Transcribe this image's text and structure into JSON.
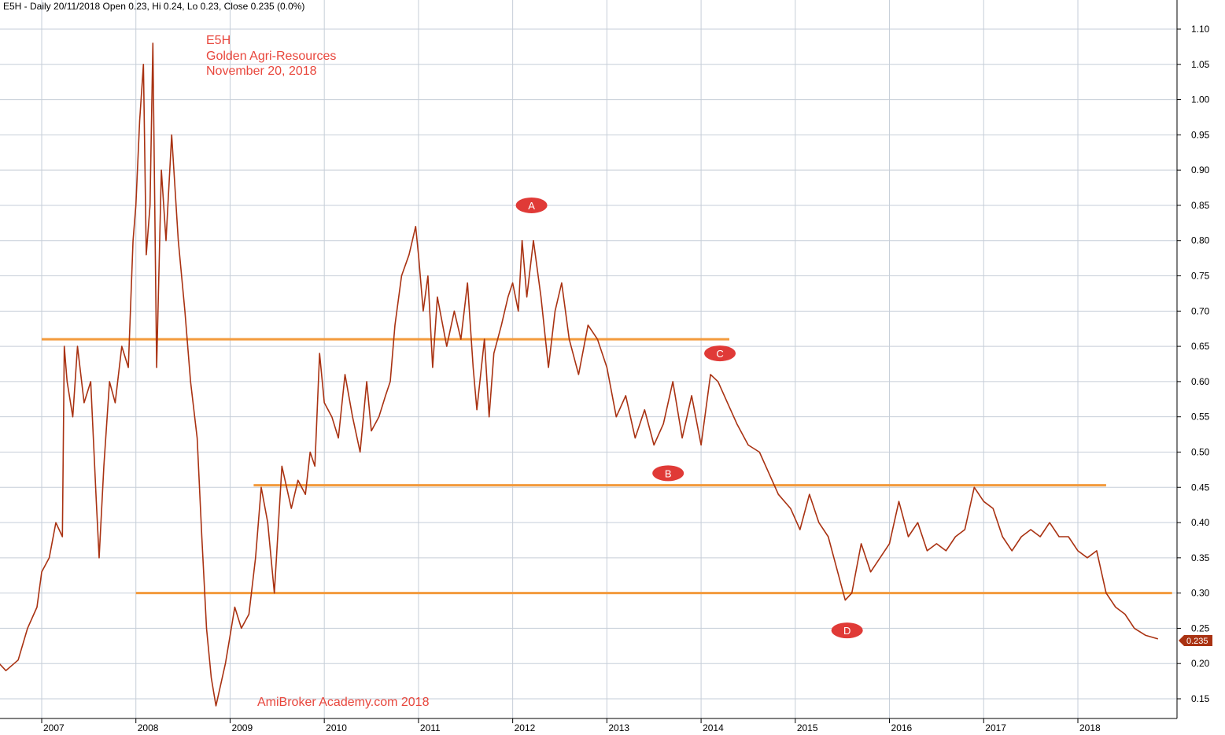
{
  "header": "E5H - Daily 20/11/2018 Open 0.23, Hi 0.24, Lo 0.23, Close 0.235 (0.0%)",
  "title_lines": [
    "E5H",
    "Golden Agri-Resources",
    "November 20, 2018"
  ],
  "watermark": "AmiBroker Academy.com  2018",
  "colors": {
    "price": "#a93212",
    "support": "#f39a3c",
    "marker": "#e03a37",
    "text_accent": "#e8463c",
    "grid": "#c6ced8"
  },
  "chart_data": {
    "type": "line",
    "series": [
      {
        "values": [
          [
            2006.55,
            0.2
          ],
          [
            2006.62,
            0.19
          ],
          [
            2006.75,
            0.205
          ],
          [
            2006.85,
            0.25
          ],
          [
            2006.95,
            0.28
          ],
          [
            2007.0,
            0.33
          ],
          [
            2007.08,
            0.35
          ],
          [
            2007.15,
            0.4
          ],
          [
            2007.22,
            0.38
          ],
          [
            2007.24,
            0.65
          ],
          [
            2007.27,
            0.6
          ],
          [
            2007.33,
            0.55
          ],
          [
            2007.38,
            0.65
          ],
          [
            2007.45,
            0.57
          ],
          [
            2007.52,
            0.6
          ],
          [
            2007.58,
            0.43
          ],
          [
            2007.61,
            0.35
          ],
          [
            2007.66,
            0.48
          ],
          [
            2007.72,
            0.6
          ],
          [
            2007.78,
            0.57
          ],
          [
            2007.85,
            0.65
          ],
          [
            2007.92,
            0.62
          ],
          [
            2007.97,
            0.8
          ],
          [
            2008.0,
            0.85
          ],
          [
            2008.04,
            0.97
          ],
          [
            2008.08,
            1.05
          ],
          [
            2008.11,
            0.78
          ],
          [
            2008.15,
            0.85
          ],
          [
            2008.18,
            1.08
          ],
          [
            2008.22,
            0.62
          ],
          [
            2008.27,
            0.9
          ],
          [
            2008.32,
            0.8
          ],
          [
            2008.38,
            0.95
          ],
          [
            2008.45,
            0.8
          ],
          [
            2008.52,
            0.7
          ],
          [
            2008.58,
            0.6
          ],
          [
            2008.65,
            0.52
          ],
          [
            2008.7,
            0.38
          ],
          [
            2008.75,
            0.25
          ],
          [
            2008.8,
            0.18
          ],
          [
            2008.85,
            0.14
          ],
          [
            2008.9,
            0.17
          ],
          [
            2008.95,
            0.2
          ],
          [
            2009.0,
            0.24
          ],
          [
            2009.05,
            0.28
          ],
          [
            2009.12,
            0.25
          ],
          [
            2009.2,
            0.27
          ],
          [
            2009.27,
            0.35
          ],
          [
            2009.33,
            0.45
          ],
          [
            2009.4,
            0.4
          ],
          [
            2009.47,
            0.3
          ],
          [
            2009.55,
            0.48
          ],
          [
            2009.65,
            0.42
          ],
          [
            2009.72,
            0.46
          ],
          [
            2009.8,
            0.44
          ],
          [
            2009.85,
            0.5
          ],
          [
            2009.9,
            0.48
          ],
          [
            2009.95,
            0.64
          ],
          [
            2010.0,
            0.57
          ],
          [
            2010.08,
            0.55
          ],
          [
            2010.15,
            0.52
          ],
          [
            2010.22,
            0.61
          ],
          [
            2010.3,
            0.55
          ],
          [
            2010.38,
            0.5
          ],
          [
            2010.45,
            0.6
          ],
          [
            2010.5,
            0.53
          ],
          [
            2010.58,
            0.55
          ],
          [
            2010.65,
            0.58
          ],
          [
            2010.7,
            0.6
          ],
          [
            2010.75,
            0.68
          ],
          [
            2010.82,
            0.75
          ],
          [
            2010.9,
            0.78
          ],
          [
            2010.97,
            0.82
          ],
          [
            2011.0,
            0.78
          ],
          [
            2011.05,
            0.7
          ],
          [
            2011.1,
            0.75
          ],
          [
            2011.15,
            0.62
          ],
          [
            2011.2,
            0.72
          ],
          [
            2011.3,
            0.65
          ],
          [
            2011.38,
            0.7
          ],
          [
            2011.45,
            0.66
          ],
          [
            2011.52,
            0.74
          ],
          [
            2011.58,
            0.62
          ],
          [
            2011.62,
            0.56
          ],
          [
            2011.7,
            0.66
          ],
          [
            2011.75,
            0.55
          ],
          [
            2011.8,
            0.64
          ],
          [
            2011.88,
            0.68
          ],
          [
            2011.95,
            0.72
          ],
          [
            2012.0,
            0.74
          ],
          [
            2012.06,
            0.7
          ],
          [
            2012.1,
            0.8
          ],
          [
            2012.15,
            0.72
          ],
          [
            2012.22,
            0.8
          ],
          [
            2012.3,
            0.72
          ],
          [
            2012.38,
            0.62
          ],
          [
            2012.45,
            0.7
          ],
          [
            2012.52,
            0.74
          ],
          [
            2012.6,
            0.66
          ],
          [
            2012.7,
            0.61
          ],
          [
            2012.8,
            0.68
          ],
          [
            2012.9,
            0.66
          ],
          [
            2013.0,
            0.62
          ],
          [
            2013.1,
            0.55
          ],
          [
            2013.2,
            0.58
          ],
          [
            2013.3,
            0.52
          ],
          [
            2013.4,
            0.56
          ],
          [
            2013.5,
            0.51
          ],
          [
            2013.6,
            0.54
          ],
          [
            2013.7,
            0.6
          ],
          [
            2013.8,
            0.52
          ],
          [
            2013.9,
            0.58
          ],
          [
            2014.0,
            0.51
          ],
          [
            2014.1,
            0.61
          ],
          [
            2014.18,
            0.6
          ],
          [
            2014.28,
            0.57
          ],
          [
            2014.38,
            0.54
          ],
          [
            2014.5,
            0.51
          ],
          [
            2014.62,
            0.5
          ],
          [
            2014.72,
            0.47
          ],
          [
            2014.82,
            0.44
          ],
          [
            2014.95,
            0.42
          ],
          [
            2015.05,
            0.39
          ],
          [
            2015.15,
            0.44
          ],
          [
            2015.25,
            0.4
          ],
          [
            2015.35,
            0.38
          ],
          [
            2015.45,
            0.33
          ],
          [
            2015.53,
            0.29
          ],
          [
            2015.6,
            0.3
          ],
          [
            2015.7,
            0.37
          ],
          [
            2015.8,
            0.33
          ],
          [
            2015.9,
            0.35
          ],
          [
            2016.0,
            0.37
          ],
          [
            2016.1,
            0.43
          ],
          [
            2016.2,
            0.38
          ],
          [
            2016.3,
            0.4
          ],
          [
            2016.4,
            0.36
          ],
          [
            2016.5,
            0.37
          ],
          [
            2016.6,
            0.36
          ],
          [
            2016.7,
            0.38
          ],
          [
            2016.8,
            0.39
          ],
          [
            2016.9,
            0.45
          ],
          [
            2017.0,
            0.43
          ],
          [
            2017.1,
            0.42
          ],
          [
            2017.2,
            0.38
          ],
          [
            2017.3,
            0.36
          ],
          [
            2017.4,
            0.38
          ],
          [
            2017.5,
            0.39
          ],
          [
            2017.6,
            0.38
          ],
          [
            2017.7,
            0.4
          ],
          [
            2017.8,
            0.38
          ],
          [
            2017.9,
            0.38
          ],
          [
            2018.0,
            0.36
          ],
          [
            2018.1,
            0.35
          ],
          [
            2018.2,
            0.36
          ],
          [
            2018.3,
            0.3
          ],
          [
            2018.4,
            0.28
          ],
          [
            2018.5,
            0.27
          ],
          [
            2018.6,
            0.25
          ],
          [
            2018.72,
            0.24
          ],
          [
            2018.85,
            0.235
          ]
        ]
      }
    ],
    "ylim": [
      0.12,
      1.12
    ],
    "xlim": [
      2006.55,
      2019.0
    ],
    "yticks": [
      0.15,
      0.2,
      0.25,
      0.3,
      0.35,
      0.4,
      0.45,
      0.5,
      0.55,
      0.6,
      0.65,
      0.7,
      0.75,
      0.8,
      0.85,
      0.9,
      0.95,
      1.0,
      1.05,
      1.1
    ],
    "ytick_labels": [
      "0.15",
      "0.20",
      "0.25",
      "0.30",
      "0.35",
      "0.40",
      "0.45",
      "0.50",
      "0.55",
      "0.60",
      "0.65",
      "0.70",
      "0.75",
      "0.80",
      "0.85",
      "0.90",
      "0.95",
      "1.00",
      "1.05",
      "1.10"
    ],
    "xticks": [
      2007,
      2008,
      2009,
      2010,
      2011,
      2012,
      2013,
      2014,
      2015,
      2016,
      2017,
      2018
    ],
    "xtick_labels": [
      "2007",
      "2008",
      "2009",
      "2010",
      "2011",
      "2012",
      "2013",
      "2014",
      "2015",
      "2016",
      "2017",
      "2018"
    ],
    "support_lines": [
      {
        "y": 0.66,
        "x_start": 2007.0,
        "x_end": 2014.3
      },
      {
        "y": 0.453,
        "x_start": 2009.25,
        "x_end": 2018.3
      },
      {
        "y": 0.3,
        "x_start": 2008.0,
        "x_end": 2019.0
      }
    ],
    "markers": [
      {
        "label": "A",
        "x": 2012.2,
        "y": 0.85
      },
      {
        "label": "B",
        "x": 2013.65,
        "y": 0.47
      },
      {
        "label": "C",
        "x": 2014.2,
        "y": 0.64
      },
      {
        "label": "D",
        "x": 2015.55,
        "y": 0.247
      }
    ],
    "last_value": "0.235",
    "grid": true
  }
}
